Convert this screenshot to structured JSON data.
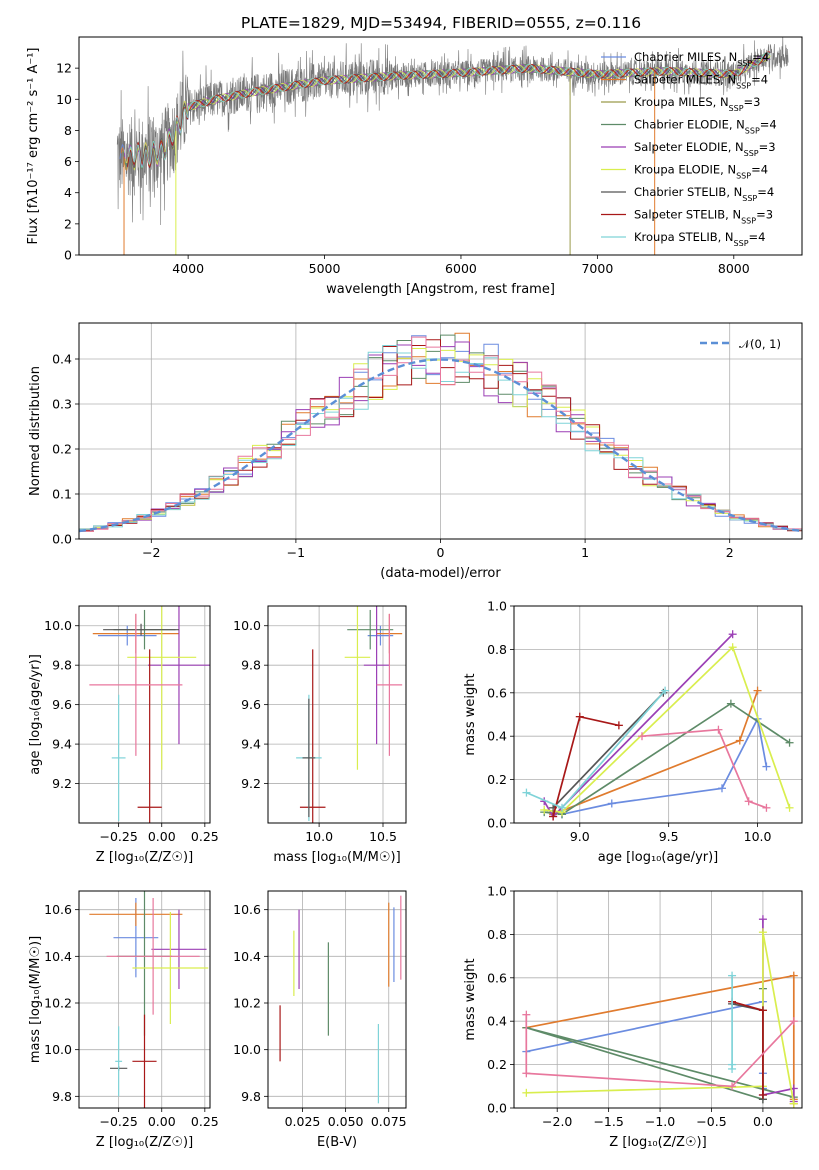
{
  "colors": {
    "Chabrier MILES": "#6b8ce0",
    "Salpeter MILES": "#e07b2e",
    "Kroupa MILES": "#9a9a4a",
    "Chabrier ELODIE": "#5e8b68",
    "Salpeter ELODIE": "#9b3fb5",
    "Kroupa ELODIE": "#d9ee4e",
    "Chabrier STELIB": "#555555",
    "Salpeter STELIB": "#a81818",
    "Kroupa STELIB": "#7fd3d8",
    "Pink": "#e8779d",
    "Normal": "#5b8fd6"
  },
  "chart_data": [
    {
      "type": "line",
      "title": "PLATE=1829, MJD=53494, FIBERID=0555, z=0.116",
      "xlabel": "wavelength [Angstrom, rest frame]",
      "ylabel": "Flux [fλ10⁻¹⁷ erg cm⁻² s⁻¹ A⁻¹]",
      "xlim": [
        3200,
        8500
      ],
      "ylim": [
        0,
        14
      ],
      "xticks": [
        "4000",
        "5000",
        "6000",
        "7000",
        "8000"
      ],
      "yticks": [
        "0",
        "2",
        "4",
        "6",
        "8",
        "10",
        "12"
      ],
      "legend_position": "right",
      "legend": [
        {
          "label": "Chabrier MILES, N",
          "sub": "SSP",
          "tail": "=4",
          "color": "#6b8ce0"
        },
        {
          "label": "Salpeter MILES, N",
          "sub": "SSP",
          "tail": "=4",
          "color": "#e07b2e"
        },
        {
          "label": "Kroupa MILES, N",
          "sub": "SSP",
          "tail": "=3",
          "color": "#9a9a4a"
        },
        {
          "label": "Chabrier ELODIE, N",
          "sub": "SSP",
          "tail": "=4",
          "color": "#5e8b68"
        },
        {
          "label": "Salpeter ELODIE, N",
          "sub": "SSP",
          "tail": "=3",
          "color": "#9b3fb5"
        },
        {
          "label": "Kroupa ELODIE, N",
          "sub": "SSP",
          "tail": "=4",
          "color": "#d9ee4e"
        },
        {
          "label": "Chabrier STELIB, N",
          "sub": "SSP",
          "tail": "=4",
          "color": "#555555"
        },
        {
          "label": "Salpeter STELIB, N",
          "sub": "SSP",
          "tail": "=3",
          "color": "#a81818"
        },
        {
          "label": "Kroupa STELIB, N",
          "sub": "SSP",
          "tail": "=4",
          "color": "#7fd3d8"
        }
      ],
      "model_continuum": {
        "x": [
          3550,
          3700,
          3800,
          3900,
          4000,
          4200,
          4500,
          5000,
          5500,
          6000,
          6500,
          7000,
          7500,
          8000,
          8250
        ],
        "y": [
          6.3,
          6.4,
          6.6,
          7.8,
          9.5,
          10.0,
          10.5,
          11.2,
          11.5,
          11.7,
          12.0,
          11.6,
          11.8,
          11.6,
          12.8
        ]
      }
    },
    {
      "type": "bar",
      "xlabel": "(data-model)/error",
      "ylabel": "Normed distribution",
      "xlim": [
        -2.5,
        2.5
      ],
      "ylim": [
        0,
        0.48
      ],
      "xticks": [
        "−2",
        "−1",
        "0",
        "1",
        "2"
      ],
      "yticks": [
        "0.0",
        "0.1",
        "0.2",
        "0.3",
        "0.4"
      ],
      "legend": [
        {
          "label": "𝒩(0, 1)",
          "color": "#5b8fd6"
        }
      ],
      "bin_width": 0.1,
      "bin_start": -2.5
    },
    {
      "type": "scatter",
      "xlabel": "Z [log₁₀(Z/Z☉)]",
      "ylabel": "age  [log₁₀(age/yr)]",
      "xlim": [
        -0.48,
        0.28
      ],
      "ylim": [
        9.0,
        10.1
      ],
      "xticks": [
        "−0.25",
        "0.00",
        "0.25"
      ],
      "yticks": [
        "9.2",
        "9.4",
        "9.6",
        "9.8",
        "10.0"
      ],
      "points": [
        {
          "model": "Chabrier MILES",
          "x": -0.2,
          "xerr": 0.17,
          "y": 9.95,
          "yerr": 0.05
        },
        {
          "model": "Salpeter MILES",
          "x": -0.15,
          "xerr": 0.25,
          "y": 9.96,
          "yerr": 0.1
        },
        {
          "model": "Chabrier ELODIE",
          "x": -0.1,
          "xerr": 0.18,
          "y": 9.98,
          "yerr": 0.1
        },
        {
          "model": "Salpeter ELODIE",
          "x": 0.1,
          "xerr": 0.18,
          "y": 9.8,
          "yerr": 0.4
        },
        {
          "model": "Kroupa ELODIE",
          "x": 0.0,
          "xerr": 0.2,
          "y": 9.84,
          "yerr": 0.57
        },
        {
          "model": "Chabrier STELIB",
          "x": -0.12,
          "xerr": 0.22,
          "y": 9.98,
          "yerr": 0.03
        },
        {
          "model": "Salpeter STELIB",
          "x": -0.07,
          "xerr": 0.07,
          "y": 9.08,
          "yerr": 0.8
        },
        {
          "model": "Kroupa STELIB",
          "x": -0.25,
          "xerr": 0.04,
          "y": 9.33,
          "yerr": 0.32
        },
        {
          "model": "Pink",
          "x": -0.15,
          "xerr": 0.27,
          "y": 9.7,
          "yerr": 0.36
        }
      ]
    },
    {
      "type": "scatter",
      "xlabel": "mass [log₁₀(M/M☉)]",
      "ylabel": "",
      "xlim": [
        9.6,
        10.68
      ],
      "ylim": [
        9.0,
        10.1
      ],
      "xticks": [
        "10.0",
        "10.5"
      ],
      "yticks": [
        "9.2",
        "9.4",
        "9.6",
        "9.8",
        "10.0"
      ],
      "points": [
        {
          "model": "Chabrier MILES",
          "x": 10.48,
          "xerr": 0.1,
          "y": 9.95,
          "yerr": 0.05
        },
        {
          "model": "Salpeter MILES",
          "x": 10.55,
          "xerr": 0.1,
          "y": 9.96,
          "yerr": 0.1
        },
        {
          "model": "Chabrier ELODIE",
          "x": 10.4,
          "xerr": 0.18,
          "y": 9.98,
          "yerr": 0.1
        },
        {
          "model": "Salpeter ELODIE",
          "x": 10.45,
          "xerr": 0.1,
          "y": 9.8,
          "yerr": 0.4
        },
        {
          "model": "Kroupa ELODIE",
          "x": 10.3,
          "xerr": 0.1,
          "y": 9.84,
          "yerr": 0.57
        },
        {
          "model": "Salpeter STELIB",
          "x": 9.95,
          "xerr": 0.1,
          "y": 9.08,
          "yerr": 0.8
        },
        {
          "model": "Kroupa STELIB",
          "x": 9.92,
          "xerr": 0.1,
          "y": 9.33,
          "yerr": 0.32
        },
        {
          "model": "Chabrier STELIB",
          "x": 9.92,
          "xerr": 0.05,
          "y": 9.33,
          "yerr": 0.3
        },
        {
          "model": "Pink",
          "x": 10.55,
          "xerr": 0.1,
          "y": 9.7,
          "yerr": 0.36
        }
      ]
    },
    {
      "type": "line",
      "xlabel": "age  [log₁₀(age/yr)]",
      "ylabel": "mass weight",
      "xlim": [
        8.63,
        10.25
      ],
      "ylim": [
        0,
        1.0
      ],
      "xticks": [
        "9.0",
        "9.5",
        "10.0"
      ],
      "yticks": [
        "0.0",
        "0.2",
        "0.4",
        "0.6",
        "0.8",
        "1.0"
      ],
      "series": [
        {
          "model": "Chabrier MILES",
          "x": [
            8.9,
            9.18,
            9.8,
            10.0,
            10.05
          ],
          "y": [
            0.04,
            0.09,
            0.16,
            0.48,
            0.26
          ]
        },
        {
          "model": "Salpeter MILES",
          "x": [
            8.85,
            9.9,
            10.0
          ],
          "y": [
            0.04,
            0.38,
            0.61
          ]
        },
        {
          "model": "Chabrier ELODIE",
          "x": [
            8.8,
            8.9,
            9.85,
            10.18
          ],
          "y": [
            0.05,
            0.04,
            0.55,
            0.37
          ]
        },
        {
          "model": "Salpeter ELODIE",
          "x": [
            8.8,
            8.85,
            9.86
          ],
          "y": [
            0.1,
            0.03,
            0.87
          ]
        },
        {
          "model": "Kroupa ELODIE",
          "x": [
            8.8,
            8.9,
            9.86,
            10.18
          ],
          "y": [
            0.06,
            0.05,
            0.81,
            0.07
          ]
        },
        {
          "model": "Chabrier STELIB",
          "x": [
            8.85,
            9.47
          ],
          "y": [
            0.07,
            0.6
          ]
        },
        {
          "model": "Salpeter STELIB",
          "x": [
            8.85,
            9.0,
            9.22
          ],
          "y": [
            0.03,
            0.49,
            0.45
          ]
        },
        {
          "model": "Kroupa STELIB",
          "x": [
            8.7,
            8.9,
            9.48
          ],
          "y": [
            0.14,
            0.07,
            0.61
          ]
        },
        {
          "model": "Pink",
          "x": [
            9.35,
            9.78,
            9.95,
            10.05
          ],
          "y": [
            0.4,
            0.43,
            0.1,
            0.07
          ]
        }
      ]
    },
    {
      "type": "scatter",
      "xlabel": "Z [log₁₀(Z/Z☉)]",
      "ylabel": "mass [log₁₀(M/M☉)]",
      "xlim": [
        -0.48,
        0.28
      ],
      "ylim": [
        9.75,
        10.68
      ],
      "xticks": [
        "−0.25",
        "0.00",
        "0.25"
      ],
      "yticks": [
        "9.8",
        "10.0",
        "10.2",
        "10.4",
        "10.6"
      ],
      "points": [
        {
          "model": "Chabrier MILES",
          "x": -0.15,
          "xerr": 0.13,
          "y": 10.48,
          "yerr": 0.17
        },
        {
          "model": "Salpeter MILES",
          "x": -0.15,
          "xerr": 0.27,
          "y": 10.58,
          "yerr": 0.05
        },
        {
          "model": "Chabrier ELODIE",
          "x": -0.1,
          "xerr": 0.16,
          "y": 10.4,
          "yerr": 0.34
        },
        {
          "model": "Salpeter ELODIE",
          "x": 0.1,
          "xerr": 0.16,
          "y": 10.43,
          "yerr": 0.17
        },
        {
          "model": "Kroupa ELODIE",
          "x": 0.05,
          "xerr": 0.22,
          "y": 10.35,
          "yerr": 0.24
        },
        {
          "model": "Chabrier STELIB",
          "x": -0.25,
          "xerr": 0.05,
          "y": 9.92,
          "yerr": 0.01
        },
        {
          "model": "Salpeter STELIB",
          "x": -0.1,
          "xerr": 0.07,
          "y": 9.95,
          "yerr": 0.2
        },
        {
          "model": "Kroupa STELIB",
          "x": -0.25,
          "xerr": 0.02,
          "y": 9.95,
          "yerr": 0.15
        },
        {
          "model": "Pink",
          "x": -0.05,
          "xerr": 0.27,
          "y": 10.4,
          "yerr": 0.25
        }
      ]
    },
    {
      "type": "scatter",
      "xlabel": "E(B-V)",
      "ylabel": "",
      "xlim": [
        0.005,
        0.085
      ],
      "ylim": [
        9.75,
        10.68
      ],
      "xticks": [
        "0.025",
        "0.050",
        "0.075"
      ],
      "yticks": [
        "9.8",
        "10.0",
        "10.2",
        "10.4",
        "10.6"
      ],
      "points": [
        {
          "model": "Salpeter STELIB",
          "x": 0.012,
          "y": 10.07,
          "yerr": 0.12
        },
        {
          "model": "Kroupa ELODIE",
          "x": 0.02,
          "y": 10.37,
          "yerr": 0.14
        },
        {
          "model": "Salpeter ELODIE",
          "x": 0.023,
          "y": 10.43,
          "yerr": 0.17
        },
        {
          "model": "Chabrier ELODIE",
          "x": 0.04,
          "y": 10.26,
          "yerr": 0.2
        },
        {
          "model": "Kroupa STELIB",
          "x": 0.069,
          "y": 9.94,
          "yerr": 0.17
        },
        {
          "model": "Salpeter MILES",
          "x": 0.075,
          "y": 10.45,
          "yerr": 0.18
        },
        {
          "model": "Chabrier MILES",
          "x": 0.078,
          "y": 10.45,
          "yerr": 0.16
        },
        {
          "model": "Pink",
          "x": 0.082,
          "y": 10.48,
          "yerr": 0.18
        }
      ]
    },
    {
      "type": "line",
      "xlabel": "Z [log₁₀(Z/Z☉)]",
      "ylabel": "mass weight",
      "xlim": [
        -2.42,
        0.38
      ],
      "ylim": [
        0,
        1.0
      ],
      "xticks": [
        "−2.0",
        "−1.5",
        "−1.0",
        "−0.5",
        "0.0"
      ],
      "yticks": [
        "0.0",
        "0.2",
        "0.4",
        "0.6",
        "0.8",
        "1.0"
      ],
      "series": [
        {
          "model": "Chabrier MILES",
          "x": [
            -2.3,
            0.0,
            0.0,
            0.0
          ],
          "y": [
            0.26,
            0.49,
            0.16,
            0.09
          ]
        },
        {
          "model": "Salpeter MILES",
          "x": [
            -2.3,
            0.3,
            0.3,
            0.3
          ],
          "y": [
            0.37,
            0.61,
            0.04,
            0.02
          ]
        },
        {
          "model": "Chabrier ELODIE",
          "x": [
            0.0,
            0.0,
            -2.3,
            0.3
          ],
          "y": [
            0.55,
            0.04,
            0.37,
            0.05
          ]
        },
        {
          "model": "Salpeter ELODIE",
          "x": [
            0.0,
            0.0,
            0.3,
            0.3
          ],
          "y": [
            0.87,
            0.06,
            0.09,
            0.03
          ]
        },
        {
          "model": "Kroupa ELODIE",
          "x": [
            -2.3,
            0.0,
            0.0,
            0.3
          ],
          "y": [
            0.07,
            0.1,
            0.81,
            0.02
          ]
        },
        {
          "model": "Chabrier STELIB",
          "x": [
            -0.3,
            0.0,
            0.0
          ],
          "y": [
            0.48,
            0.45,
            0.04
          ]
        },
        {
          "model": "Salpeter STELIB",
          "x": [
            -0.3,
            0.0,
            0.0
          ],
          "y": [
            0.49,
            0.45,
            0.06
          ]
        },
        {
          "model": "Kroupa STELIB",
          "x": [
            -0.3,
            -0.3,
            -0.3
          ],
          "y": [
            0.61,
            0.2,
            0.18
          ]
        },
        {
          "model": "Pink",
          "x": [
            -2.3,
            -2.3,
            -0.3,
            0.3
          ],
          "y": [
            0.43,
            0.16,
            0.1,
            0.4
          ]
        }
      ]
    }
  ]
}
